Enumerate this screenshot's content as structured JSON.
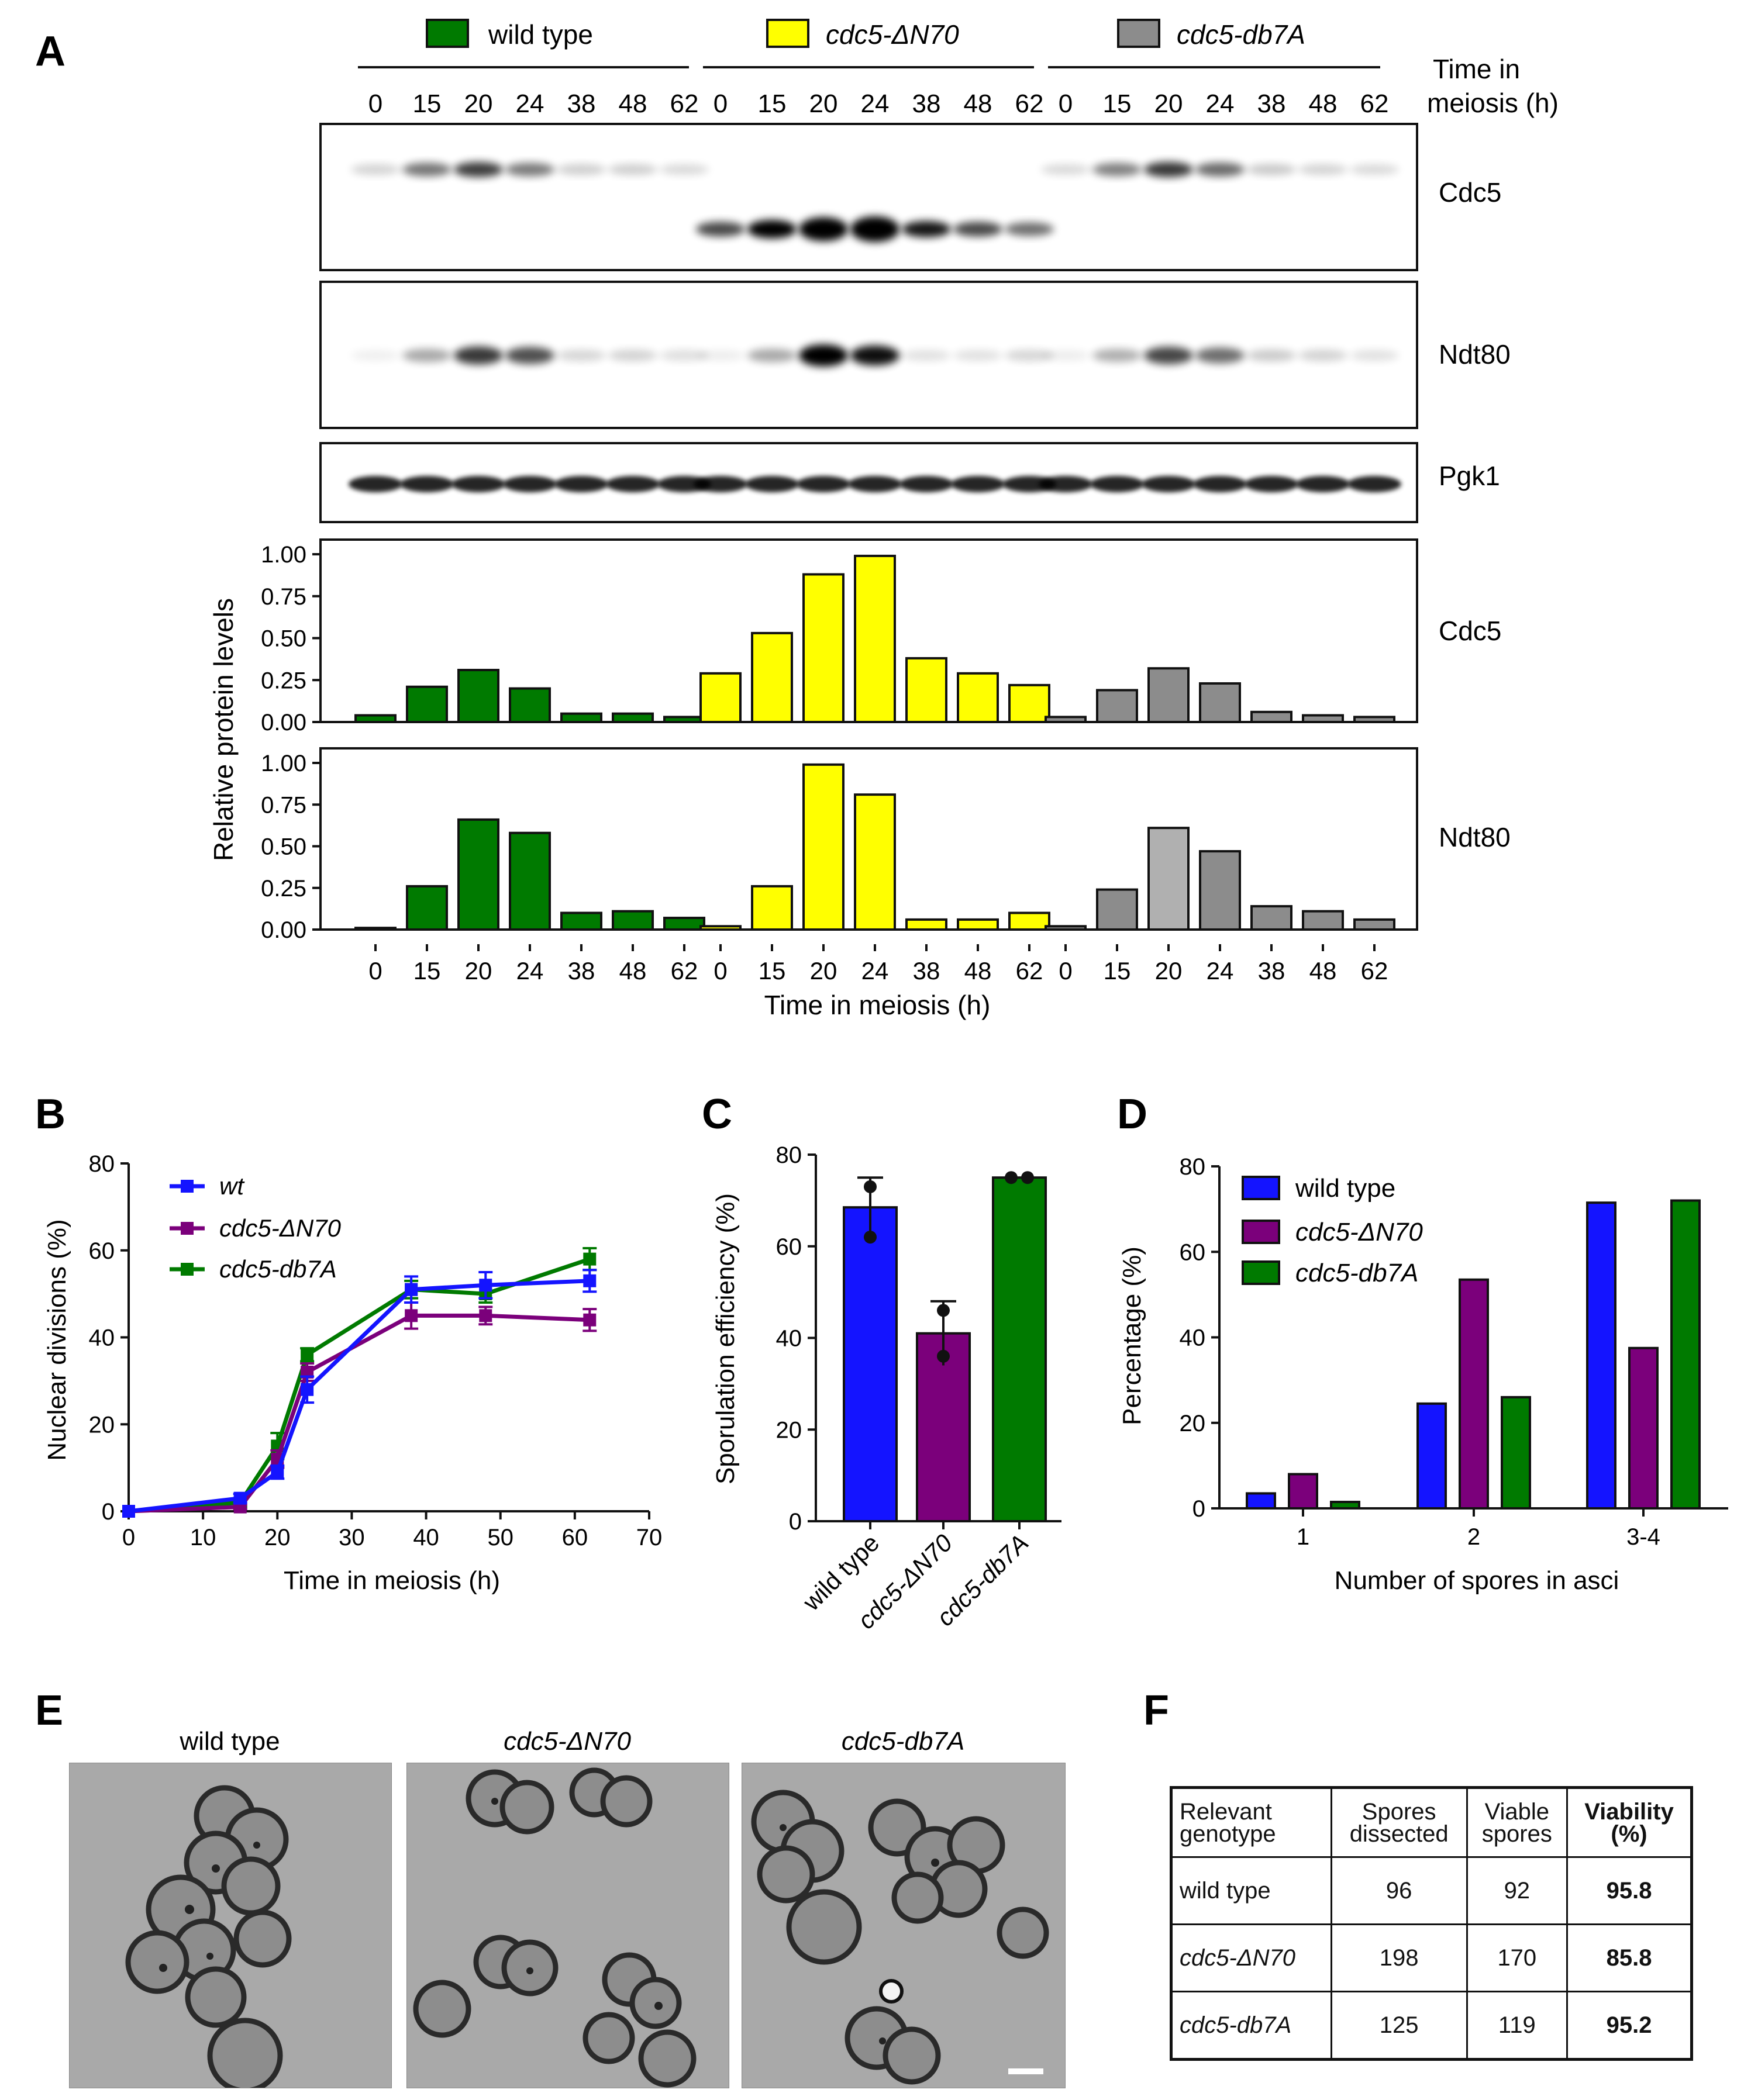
{
  "panels": {
    "A": "A",
    "B": "B",
    "C": "C",
    "D": "D",
    "E": "E",
    "F": "F"
  },
  "colors": {
    "wild_type": "#007a00",
    "dN70": "#ffff00",
    "db7A": "#8c8c8c",
    "db7A_light": "#b0b0b0",
    "blue": "#1414ff",
    "purple": "#7b007b",
    "green": "#007a00"
  },
  "panelA": {
    "legend": [
      "wild type",
      "cdc5-ΔN70",
      "cdc5-db7A"
    ],
    "time_header": [
      "Time in",
      "meiosis (h)"
    ],
    "lanes": [
      "0",
      "15",
      "20",
      "24",
      "38",
      "48",
      "62"
    ],
    "blot_labels": [
      "Cdc5",
      "Ndt80",
      "Pgk1"
    ],
    "chart_ylabel": "Relative protein levels",
    "chart_xlabel": "Time in meiosis (h)"
  },
  "chart_data": [
    {
      "id": "A-cdc5",
      "type": "bar",
      "label": "Cdc5",
      "ylim": [
        0,
        1.0
      ],
      "yticks": [
        "0.00",
        "0.25",
        "0.50",
        "0.75",
        "1.00"
      ],
      "categories": [
        "0",
        "15",
        "20",
        "24",
        "38",
        "48",
        "62"
      ],
      "series": [
        {
          "name": "wild type",
          "values": [
            0.04,
            0.21,
            0.31,
            0.2,
            0.05,
            0.05,
            0.03
          ]
        },
        {
          "name": "cdc5-ΔN70",
          "values": [
            0.29,
            0.53,
            0.88,
            0.99,
            0.38,
            0.29,
            0.22
          ]
        },
        {
          "name": "cdc5-db7A",
          "values": [
            0.03,
            0.19,
            0.32,
            0.23,
            0.06,
            0.04,
            0.03
          ]
        }
      ]
    },
    {
      "id": "A-ndt80",
      "type": "bar",
      "label": "Ndt80",
      "ylim": [
        0,
        1.0
      ],
      "yticks": [
        "0.00",
        "0.25",
        "0.50",
        "0.75",
        "1.00"
      ],
      "categories": [
        "0",
        "15",
        "20",
        "24",
        "38",
        "48",
        "62"
      ],
      "series": [
        {
          "name": "wild type",
          "values": [
            0.01,
            0.26,
            0.66,
            0.58,
            0.1,
            0.11,
            0.07
          ]
        },
        {
          "name": "cdc5-ΔN70",
          "values": [
            0.02,
            0.26,
            0.99,
            0.81,
            0.06,
            0.06,
            0.1
          ]
        },
        {
          "name": "cdc5-db7A",
          "values": [
            0.02,
            0.24,
            0.61,
            0.47,
            0.14,
            0.11,
            0.06
          ]
        }
      ]
    },
    {
      "id": "B",
      "type": "line",
      "ylabel": "Nuclear divisions (%)",
      "xlabel": "Time in meiosis (h)",
      "xlim": [
        0,
        70
      ],
      "ylim": [
        0,
        80
      ],
      "xticks": [
        "0",
        "10",
        "20",
        "30",
        "40",
        "50",
        "60",
        "70"
      ],
      "yticks": [
        "0",
        "20",
        "40",
        "60",
        "80"
      ],
      "x": [
        0,
        15,
        20,
        24,
        38,
        48,
        62
      ],
      "series": [
        {
          "name": "wt",
          "values": [
            0,
            3,
            9,
            28,
            51,
            52,
            53
          ],
          "err": [
            0,
            1,
            1.5,
            3,
            3,
            3,
            2.5
          ]
        },
        {
          "name": "cdc5-ΔN70",
          "values": [
            0,
            1,
            12,
            32,
            45,
            45,
            44
          ],
          "err": [
            0,
            0.5,
            2,
            2,
            3,
            2,
            2.5
          ]
        },
        {
          "name": "cdc5-db7A",
          "values": [
            0,
            2,
            15,
            36,
            51,
            50,
            58
          ],
          "err": [
            0,
            1,
            3,
            1.5,
            2,
            2,
            2.5
          ]
        }
      ]
    },
    {
      "id": "C",
      "type": "bar",
      "ylabel": "Sporulation efficiency (%)",
      "ylim": [
        0,
        80
      ],
      "yticks": [
        "0",
        "20",
        "40",
        "60",
        "80"
      ],
      "categories": [
        "wild type",
        "cdc5-ΔN70",
        "cdc5-db7A"
      ],
      "values": [
        68.5,
        41,
        75
      ],
      "err": [
        6.5,
        7,
        0
      ],
      "points": [
        [
          73,
          62
        ],
        [
          46,
          36
        ],
        [
          75,
          75
        ]
      ]
    },
    {
      "id": "D",
      "type": "bar",
      "ylabel": "Percentage (%)",
      "xlabel": "Number of spores in asci",
      "ylim": [
        0,
        80
      ],
      "yticks": [
        "0",
        "20",
        "40",
        "60",
        "80"
      ],
      "categories": [
        "1",
        "2",
        "3-4"
      ],
      "series": [
        {
          "name": "wild type",
          "values": [
            3.5,
            24.5,
            71.5
          ]
        },
        {
          "name": "cdc5-ΔN70",
          "values": [
            8,
            53.5,
            37.5
          ]
        },
        {
          "name": "cdc5-db7A",
          "values": [
            1.5,
            26,
            72
          ]
        }
      ]
    }
  ],
  "panelE": {
    "labels": [
      "wild type",
      "cdc5-ΔN70",
      "cdc5-db7A"
    ]
  },
  "panelF": {
    "headers": [
      [
        "Relevant",
        "genotype"
      ],
      [
        "Spores",
        "dissected"
      ],
      [
        "Viable",
        "spores"
      ],
      [
        "Viability",
        "(%)"
      ]
    ],
    "rows": [
      {
        "genotype": "wild type",
        "dissected": "96",
        "viable": "92",
        "viability": "95.8"
      },
      {
        "genotype": "cdc5-ΔN70",
        "dissected": "198",
        "viable": "170",
        "viability": "85.8"
      },
      {
        "genotype": "cdc5-db7A",
        "dissected": "125",
        "viable": "119",
        "viability": "95.2"
      }
    ]
  }
}
